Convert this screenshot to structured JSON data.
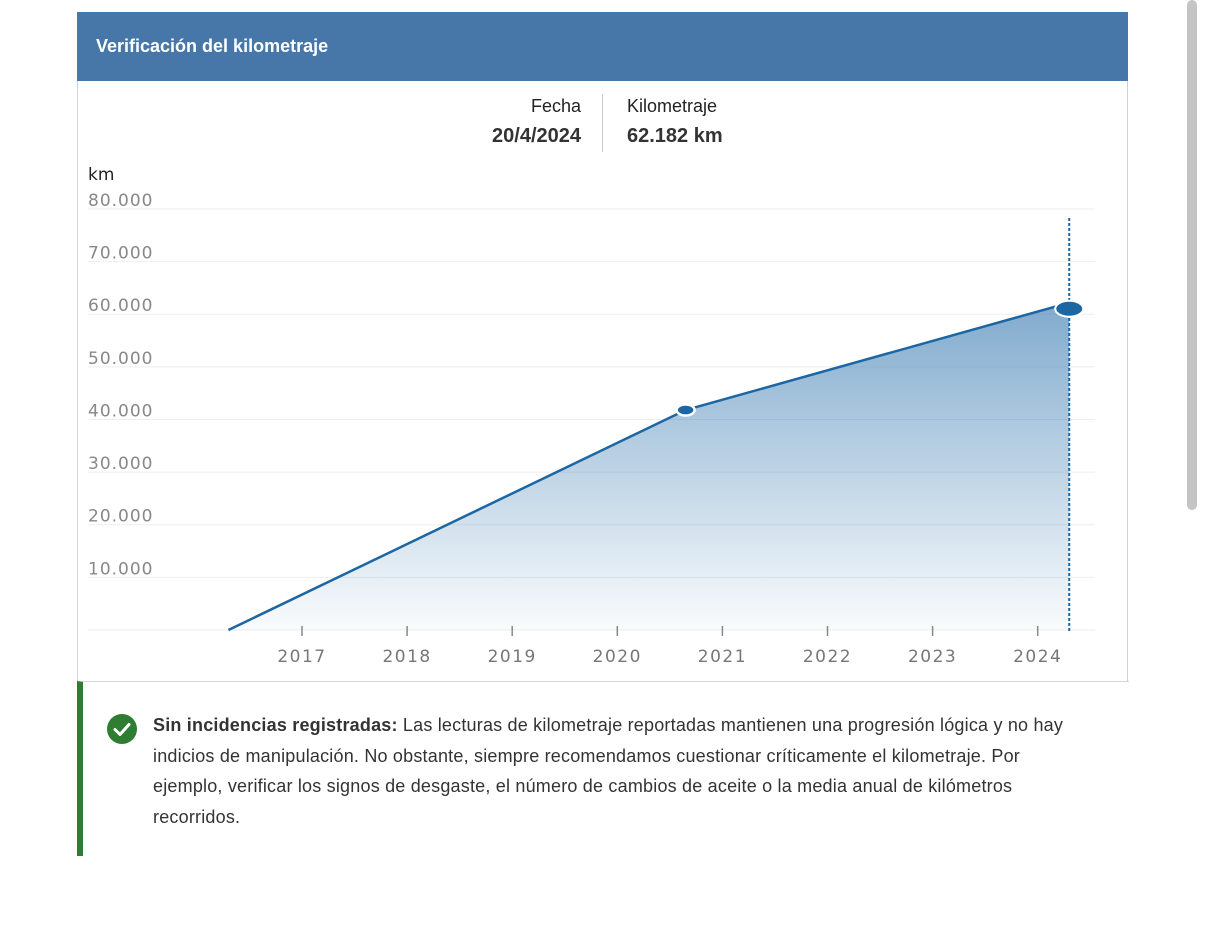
{
  "header": {
    "title": "Verificación del kilometraje"
  },
  "tooltip": {
    "date_label": "Fecha",
    "date_value": "20/4/2024",
    "km_label": "Kilometraje",
    "km_value": "62.182 km"
  },
  "chart_data": {
    "type": "area",
    "title": "Verificación del kilometraje",
    "ylabel": "km",
    "xlabel": "",
    "ylim": [
      0,
      80000
    ],
    "xlim": [
      2016.3,
      2024.3
    ],
    "y_ticks": [
      10000,
      20000,
      30000,
      40000,
      50000,
      60000,
      70000,
      80000
    ],
    "y_tick_labels": [
      "10.000",
      "20.000",
      "30.000",
      "40.000",
      "50.000",
      "60.000",
      "70.000",
      "80.000"
    ],
    "x_ticks": [
      2017,
      2018,
      2019,
      2020,
      2021,
      2022,
      2023,
      2024
    ],
    "x_tick_labels": [
      "2017",
      "2018",
      "2019",
      "2020",
      "2021",
      "2022",
      "2023",
      "2024"
    ],
    "grid": true,
    "series": [
      {
        "name": "Kilometraje",
        "points": [
          {
            "x": 2016.3,
            "y": 0
          },
          {
            "x": 2020.65,
            "y": 41800
          },
          {
            "x": 2024.3,
            "y": 62182
          }
        ]
      }
    ],
    "highlight_x": 2024.3,
    "colors": {
      "line": "#1b66a3",
      "fill": "#4a86b8"
    }
  },
  "alert": {
    "title": "Sin incidencias registradas:",
    "body": " Las lecturas de kilometraje reportadas mantienen una progresión lógica y no hay indicios de manipulación. No obstante, siempre recomendamos cuestionar críticamente el kilometraje. Por ejemplo, verificar los signos de desgaste, el número de cambios de aceite o la media anual de kilómetros recorridos.",
    "icon": "check-circle-icon",
    "color": "#2e7d32"
  }
}
